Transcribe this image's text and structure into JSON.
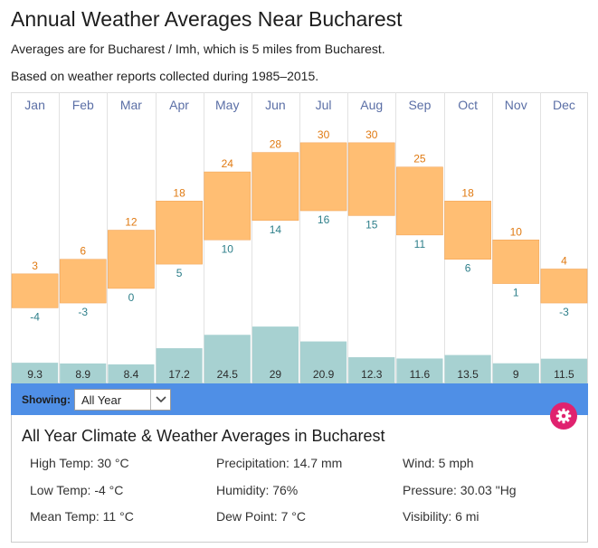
{
  "title": "Annual Weather Averages Near Bucharest",
  "subtitle": "Averages are for Bucharest / Imh, which is 5 miles from Bucharest.",
  "note": "Based on weather reports collected during 1985–2015.",
  "colors": {
    "high_bar": "#ffbe73",
    "high_label": "#e07a12",
    "low_label": "#2e7f8a",
    "precip_bar": "#a7d1d1",
    "month_label": "#5b6fa6",
    "showing_bar": "#4f8fe6",
    "settings": "#e0226f"
  },
  "chart_data": {
    "type": "bar",
    "title": "",
    "categories": [
      "Jan",
      "Feb",
      "Mar",
      "Apr",
      "May",
      "Jun",
      "Jul",
      "Aug",
      "Sep",
      "Oct",
      "Nov",
      "Dec"
    ],
    "series": [
      {
        "name": "High Temp (°C)",
        "values": [
          3,
          6,
          12,
          18,
          24,
          28,
          30,
          30,
          25,
          18,
          10,
          4
        ]
      },
      {
        "name": "Low Temp (°C)",
        "values": [
          -4,
          -3,
          0,
          5,
          10,
          14,
          16,
          15,
          11,
          6,
          1,
          -3
        ]
      },
      {
        "name": "Precipitation",
        "values": [
          9.3,
          8.9,
          8.4,
          17.2,
          24.5,
          29,
          20.9,
          12.3,
          11.6,
          13.5,
          9,
          11.5
        ],
        "labels": [
          "9.3",
          "8.9",
          "8.4",
          "17.2",
          "24.5",
          "29",
          "20.9",
          "12.3",
          "11.6",
          "13.5",
          "9",
          "11.5"
        ]
      }
    ],
    "temp_range": [
      -12,
      35
    ],
    "precip_max": 29
  },
  "showing": {
    "label": "Showing:",
    "selected": "All Year"
  },
  "icons": {
    "dropdown": "chevron-down-icon",
    "settings": "gear-icon"
  },
  "summary": {
    "title": "All Year Climate & Weather Averages in Bucharest",
    "col1": [
      "High Temp: 30 °C",
      "Low Temp: -4 °C",
      "Mean Temp: 11 °C"
    ],
    "col2": [
      "Precipitation: 14.7 mm",
      "Humidity: 76%",
      "Dew Point: 7 °C"
    ],
    "col3": [
      "Wind: 5 mph",
      "Pressure: 30.03 \"Hg",
      "Visibility: 6 mi"
    ]
  }
}
